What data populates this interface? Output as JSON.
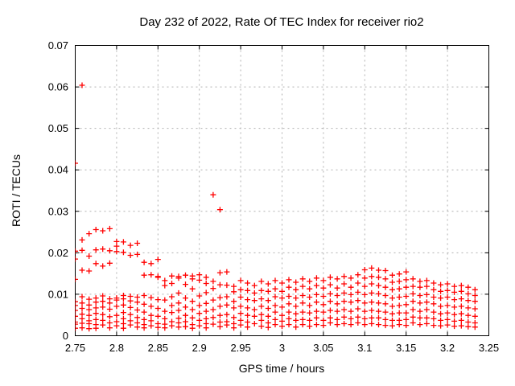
{
  "chart_data": {
    "type": "scatter",
    "title": "Day 232 of 2022, Rate Of TEC Index for receiver rio2",
    "xlabel": "GPS time / hours",
    "ylabel": "ROTI / TECUs",
    "xlim": [
      2.75,
      3.25
    ],
    "ylim": [
      0,
      0.07
    ],
    "xticks": [
      2.75,
      2.8,
      2.85,
      2.9,
      2.95,
      3.0,
      3.05,
      3.1,
      3.15,
      3.2,
      3.25
    ],
    "xtick_labels": [
      "2.75",
      "2.8",
      "2.85",
      "2.9",
      "2.95",
      "3",
      "3.05",
      "3.1",
      "3.15",
      "3.2",
      "3.25"
    ],
    "yticks": [
      0,
      0.01,
      0.02,
      0.03,
      0.04,
      0.05,
      0.06,
      0.07
    ],
    "ytick_labels": [
      "0",
      "0.01",
      "0.02",
      "0.03",
      "0.04",
      "0.05",
      "0.06",
      "0.07"
    ],
    "grid": true,
    "legend": "none",
    "marker": "plus",
    "marker_color": "#ff0000",
    "grid_color": "#b0b0b0",
    "border_color": "#000000",
    "series": [
      {
        "name": "ROTI",
        "epochs": [
          {
            "t": 2.75,
            "y": [
              0.0416,
              0.0204,
              0.0185,
              0.0136,
              0.0082,
              0.0073,
              0.0061,
              0.0047,
              0.0033,
              0.0028,
              0.0018
            ]
          },
          {
            "t": 2.7583,
            "y": [
              0.0604,
              0.0231,
              0.0206,
              0.0158,
              0.0094,
              0.0079,
              0.0066,
              0.0052,
              0.0041,
              0.003,
              0.0019
            ]
          },
          {
            "t": 2.7667,
            "y": [
              0.0246,
              0.0192,
              0.0156,
              0.0088,
              0.0074,
              0.0063,
              0.0049,
              0.0036,
              0.0029,
              0.0017
            ]
          },
          {
            "t": 2.775,
            "y": [
              0.0256,
              0.0207,
              0.0174,
              0.0091,
              0.0081,
              0.0067,
              0.0054,
              0.0039,
              0.0027,
              0.0018
            ]
          },
          {
            "t": 2.7833,
            "y": [
              0.0253,
              0.0209,
              0.0168,
              0.0096,
              0.0083,
              0.0069,
              0.0051,
              0.0037,
              0.0026
            ]
          },
          {
            "t": 2.7917,
            "y": [
              0.0258,
              0.0205,
              0.0175,
              0.0089,
              0.0079,
              0.0064,
              0.0046,
              0.0031,
              0.0019
            ]
          },
          {
            "t": 2.8,
            "y": [
              0.0227,
              0.0216,
              0.0203,
              0.0091,
              0.0086,
              0.0071,
              0.0049,
              0.0034,
              0.0024
            ]
          },
          {
            "t": 2.8083,
            "y": [
              0.0226,
              0.0201,
              0.0097,
              0.0089,
              0.0074,
              0.0056,
              0.0041,
              0.0029,
              0.0018
            ]
          },
          {
            "t": 2.8167,
            "y": [
              0.0218,
              0.0194,
              0.0095,
              0.0084,
              0.0068,
              0.0051,
              0.0036,
              0.0026
            ]
          },
          {
            "t": 2.825,
            "y": [
              0.0223,
              0.0196,
              0.0093,
              0.0081,
              0.0062,
              0.0044,
              0.0031,
              0.0021
            ]
          },
          {
            "t": 2.8333,
            "y": [
              0.0177,
              0.0146,
              0.0097,
              0.0076,
              0.0057,
              0.0039,
              0.0027,
              0.0019
            ]
          },
          {
            "t": 2.8417,
            "y": [
              0.0174,
              0.0147,
              0.0092,
              0.0071,
              0.0049,
              0.0036,
              0.0024
            ]
          },
          {
            "t": 2.85,
            "y": [
              0.0184,
              0.0143,
              0.0141,
              0.0087,
              0.0066,
              0.0047,
              0.0029,
              0.002
            ]
          },
          {
            "t": 2.8583,
            "y": [
              0.0133,
              0.0121,
              0.0086,
              0.0059,
              0.0041,
              0.0028,
              0.0019
            ]
          },
          {
            "t": 2.8667,
            "y": [
              0.0144,
              0.0126,
              0.0094,
              0.0073,
              0.0056,
              0.0034,
              0.0024
            ]
          },
          {
            "t": 2.875,
            "y": [
              0.0143,
              0.0139,
              0.0103,
              0.0079,
              0.0061,
              0.0042,
              0.0031,
              0.0021
            ]
          },
          {
            "t": 2.8833,
            "y": [
              0.0146,
              0.0124,
              0.0091,
              0.0069,
              0.0049,
              0.0034,
              0.0022
            ]
          },
          {
            "t": 2.8917,
            "y": [
              0.0144,
              0.0137,
              0.0113,
              0.0083,
              0.0063,
              0.0043,
              0.0027,
              0.0018
            ]
          },
          {
            "t": 2.9,
            "y": [
              0.0147,
              0.0134,
              0.0096,
              0.0073,
              0.0054,
              0.0037,
              0.0024
            ]
          },
          {
            "t": 2.9083,
            "y": [
              0.0141,
              0.0126,
              0.0104,
              0.0078,
              0.0059,
              0.0041,
              0.0029,
              0.0019
            ]
          },
          {
            "t": 2.9167,
            "y": [
              0.034,
              0.0131,
              0.0114,
              0.0086,
              0.0063,
              0.0044,
              0.0028
            ]
          },
          {
            "t": 2.925,
            "y": [
              0.0304,
              0.0152,
              0.0123,
              0.0092,
              0.0071,
              0.0049,
              0.0033,
              0.0022
            ]
          },
          {
            "t": 2.9333,
            "y": [
              0.0154,
              0.0122,
              0.0094,
              0.0074,
              0.0051,
              0.0034,
              0.0026
            ]
          },
          {
            "t": 2.9417,
            "y": [
              0.0119,
              0.0106,
              0.0083,
              0.0067,
              0.0044,
              0.0029,
              0.0019
            ]
          },
          {
            "t": 2.95,
            "y": [
              0.0133,
              0.0111,
              0.0093,
              0.0071,
              0.0054,
              0.0037,
              0.0026
            ]
          },
          {
            "t": 2.9583,
            "y": [
              0.0127,
              0.0109,
              0.0087,
              0.0067,
              0.0049,
              0.0033,
              0.0021
            ]
          },
          {
            "t": 2.9667,
            "y": [
              0.0121,
              0.0103,
              0.0085,
              0.0063,
              0.0047,
              0.0029
            ]
          },
          {
            "t": 2.975,
            "y": [
              0.0131,
              0.0109,
              0.0089,
              0.0071,
              0.0051,
              0.0037,
              0.0023
            ]
          },
          {
            "t": 2.9833,
            "y": [
              0.0125,
              0.0107,
              0.0085,
              0.0066,
              0.0047,
              0.0031,
              0.002
            ]
          },
          {
            "t": 2.9917,
            "y": [
              0.0133,
              0.0113,
              0.0094,
              0.0073,
              0.0057,
              0.0039,
              0.0027
            ]
          },
          {
            "t": 3.0,
            "y": [
              0.0127,
              0.0107,
              0.0091,
              0.0069,
              0.0049,
              0.0035,
              0.0023
            ]
          },
          {
            "t": 3.0083,
            "y": [
              0.0135,
              0.0117,
              0.0095,
              0.0077,
              0.0057,
              0.0041,
              0.0027
            ]
          },
          {
            "t": 3.0167,
            "y": [
              0.0129,
              0.0111,
              0.0091,
              0.0071,
              0.0053,
              0.0037,
              0.0021
            ]
          },
          {
            "t": 3.025,
            "y": [
              0.0137,
              0.0119,
              0.0097,
              0.0079,
              0.0057,
              0.0039,
              0.0027
            ]
          },
          {
            "t": 3.0333,
            "y": [
              0.0131,
              0.0113,
              0.0093,
              0.0073,
              0.0055,
              0.0037,
              0.0023
            ]
          },
          {
            "t": 3.0417,
            "y": [
              0.0139,
              0.0121,
              0.0099,
              0.0081,
              0.0059,
              0.0043,
              0.0027
            ]
          },
          {
            "t": 3.05,
            "y": [
              0.0133,
              0.0115,
              0.0095,
              0.0075,
              0.0057,
              0.0037,
              0.0025
            ]
          },
          {
            "t": 3.0583,
            "y": [
              0.0141,
              0.0123,
              0.0101,
              0.0083,
              0.0061,
              0.0043,
              0.0031
            ]
          },
          {
            "t": 3.0667,
            "y": [
              0.0137,
              0.0115,
              0.0097,
              0.0077,
              0.0059,
              0.0039,
              0.0027
            ]
          },
          {
            "t": 3.075,
            "y": [
              0.0143,
              0.0125,
              0.0103,
              0.0083,
              0.0063,
              0.0045,
              0.0029
            ]
          },
          {
            "t": 3.0833,
            "y": [
              0.0139,
              0.0117,
              0.0099,
              0.0081,
              0.0059,
              0.0041,
              0.0027
            ]
          },
          {
            "t": 3.0917,
            "y": [
              0.0147,
              0.0127,
              0.0105,
              0.0085,
              0.0065,
              0.0045,
              0.0031
            ]
          },
          {
            "t": 3.1,
            "y": [
              0.0159,
              0.0139,
              0.0119,
              0.0099,
              0.0079,
              0.0059,
              0.0041,
              0.0027
            ]
          },
          {
            "t": 3.1083,
            "y": [
              0.0163,
              0.0143,
              0.0125,
              0.0103,
              0.0081,
              0.0061,
              0.0043,
              0.0029
            ]
          },
          {
            "t": 3.1167,
            "y": [
              0.0158,
              0.0141,
              0.0121,
              0.0101,
              0.0079,
              0.0059,
              0.0043,
              0.0027
            ]
          },
          {
            "t": 3.125,
            "y": [
              0.0157,
              0.0137,
              0.0117,
              0.0097,
              0.0077,
              0.0057,
              0.0039,
              0.0025
            ]
          },
          {
            "t": 3.1333,
            "y": [
              0.0146,
              0.0129,
              0.0111,
              0.0091,
              0.0071,
              0.0053,
              0.0037,
              0.0024
            ]
          },
          {
            "t": 3.1417,
            "y": [
              0.0149,
              0.0131,
              0.0113,
              0.0093,
              0.0073,
              0.0055,
              0.0037,
              0.0027
            ]
          },
          {
            "t": 3.15,
            "y": [
              0.0154,
              0.0135,
              0.0117,
              0.0095,
              0.0075,
              0.0055,
              0.0039,
              0.0025
            ]
          },
          {
            "t": 3.1583,
            "y": [
              0.0137,
              0.0119,
              0.0101,
              0.0083,
              0.0063,
              0.0045,
              0.0031
            ]
          },
          {
            "t": 3.1667,
            "y": [
              0.0131,
              0.0117,
              0.0097,
              0.0079,
              0.0059,
              0.0043,
              0.0027
            ]
          },
          {
            "t": 3.175,
            "y": [
              0.0133,
              0.0119,
              0.0099,
              0.0081,
              0.0063,
              0.0043,
              0.0029
            ]
          },
          {
            "t": 3.1833,
            "y": [
              0.0127,
              0.0111,
              0.0093,
              0.0077,
              0.0057,
              0.0041,
              0.0025
            ]
          },
          {
            "t": 3.1917,
            "y": [
              0.0123,
              0.0107,
              0.0091,
              0.0071,
              0.0053,
              0.0037,
              0.0024
            ]
          },
          {
            "t": 3.2,
            "y": [
              0.0125,
              0.0109,
              0.0093,
              0.0073,
              0.0055,
              0.0039,
              0.0026
            ]
          },
          {
            "t": 3.2083,
            "y": [
              0.0119,
              0.0105,
              0.0087,
              0.0069,
              0.0051,
              0.0035,
              0.0023
            ]
          },
          {
            "t": 3.2167,
            "y": [
              0.0121,
              0.0107,
              0.0089,
              0.0071,
              0.0053,
              0.0037,
              0.0024
            ]
          },
          {
            "t": 3.225,
            "y": [
              0.0117,
              0.0101,
              0.0085,
              0.0067,
              0.0049,
              0.0033,
              0.0022
            ]
          },
          {
            "t": 3.2333,
            "y": [
              0.0111,
              0.0097,
              0.0083,
              0.0065,
              0.0047,
              0.0031,
              0.0021
            ]
          }
        ]
      }
    ]
  }
}
